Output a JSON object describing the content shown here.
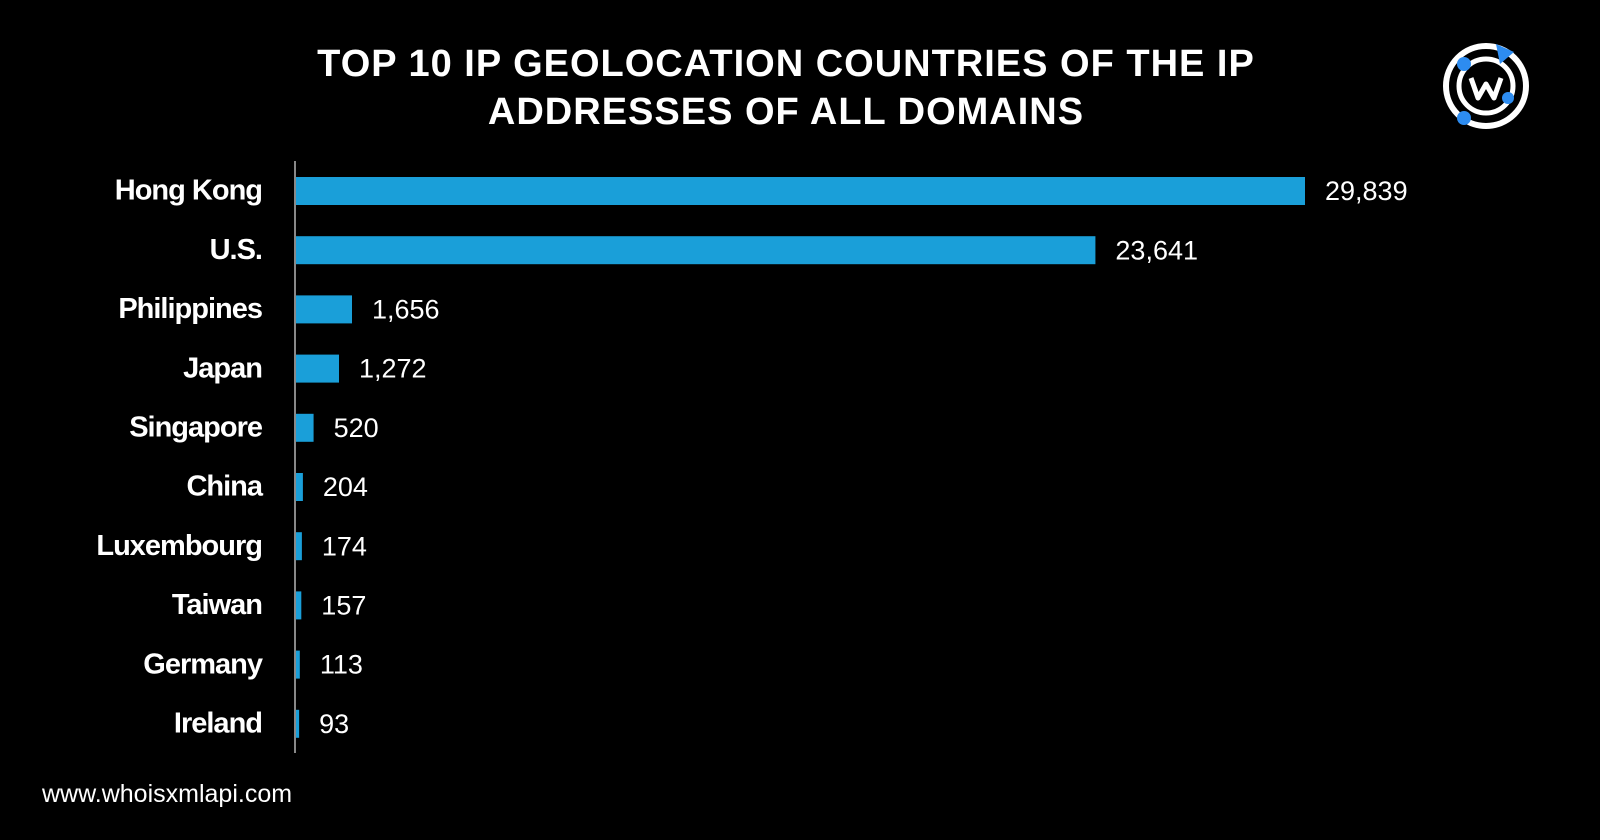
{
  "chart_data": {
    "type": "bar",
    "orientation": "horizontal",
    "title": "TOP 10 IP GEOLOCATION COUNTRIES OF THE IP ADDRESSES OF ALL DOMAINS",
    "categories": [
      "Hong Kong",
      "U.S.",
      "Philippines",
      "Japan",
      "Singapore",
      "China",
      "Luxembourg",
      "Taiwan",
      "Germany",
      "Ireland"
    ],
    "values": [
      29839,
      23641,
      1656,
      1272,
      520,
      204,
      174,
      157,
      113,
      93
    ],
    "value_labels": [
      "29,839",
      "23,641",
      "1,656",
      "1,272",
      "520",
      "204",
      "174",
      "157",
      "113",
      "93"
    ],
    "color": "#1a9fd9"
  },
  "footer": "www.whoisxmlapi.com"
}
